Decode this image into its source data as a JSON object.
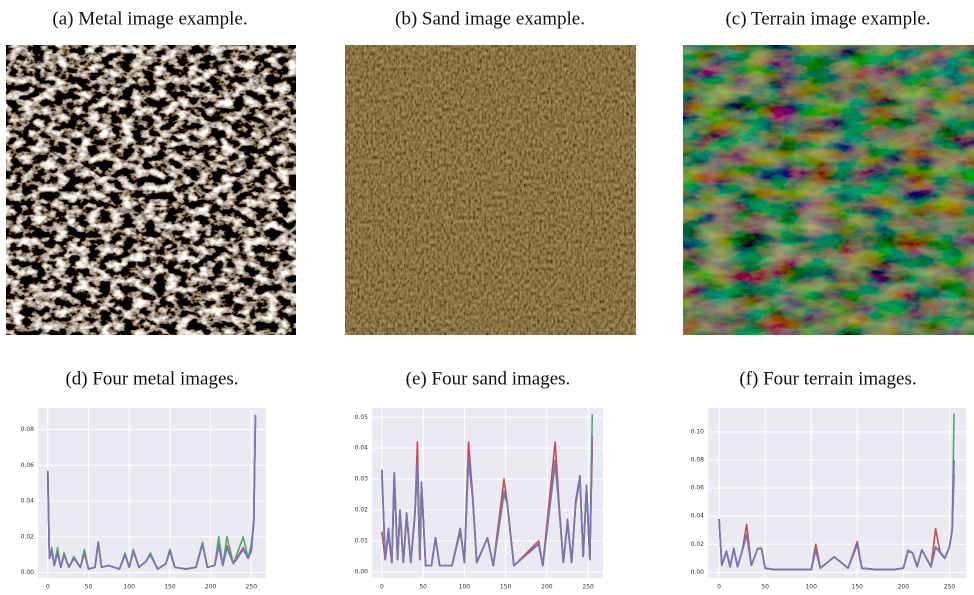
{
  "images": [
    {
      "caption": "(a) Metal image example."
    },
    {
      "caption": "(b) Sand image example."
    },
    {
      "caption": "(c) Terrain image example."
    }
  ],
  "chart_data": [
    {
      "type": "line",
      "title": "(d) Four metal images.",
      "grid": true,
      "xlim": [
        -12,
        268
      ],
      "xticks": [
        0,
        50,
        100,
        150,
        200,
        250
      ],
      "ylim": [
        -0.003,
        0.092
      ],
      "yticks": [
        {
          "value": 0,
          "label": "0.00"
        },
        {
          "value": 0.02,
          "label": "0.02"
        },
        {
          "value": 0.04,
          "label": "0.04"
        },
        {
          "value": 0.06,
          "label": "0.06"
        },
        {
          "value": 0.08,
          "label": "0.08"
        }
      ],
      "x": [
        0,
        2,
        5,
        8,
        12,
        16,
        20,
        26,
        32,
        40,
        45,
        50,
        58,
        62,
        66,
        75,
        88,
        95,
        100,
        105,
        112,
        120,
        126,
        135,
        145,
        150,
        156,
        170,
        182,
        190,
        196,
        205,
        210,
        215,
        220,
        228,
        240,
        246,
        250,
        253,
        255
      ],
      "series": [
        {
          "color": "#4c72b0",
          "values": [
            0.057,
            0.008,
            0.012,
            0.004,
            0.011,
            0.003,
            0.01,
            0.003,
            0.008,
            0.003,
            0.011,
            0.002,
            0.003,
            0.017,
            0.003,
            0.004,
            0.002,
            0.01,
            0.003,
            0.012,
            0.003,
            0.006,
            0.01,
            0.002,
            0.005,
            0.012,
            0.003,
            0.002,
            0.003,
            0.016,
            0.003,
            0.004,
            0.015,
            0.004,
            0.014,
            0.005,
            0.013,
            0.008,
            0.012,
            0.03,
            0.088
          ]
        },
        {
          "color": "#c44e52",
          "values": [
            0.056,
            0.008,
            0.012,
            0.004,
            0.012,
            0.003,
            0.01,
            0.003,
            0.008,
            0.003,
            0.011,
            0.002,
            0.003,
            0.017,
            0.003,
            0.004,
            0.002,
            0.01,
            0.003,
            0.012,
            0.003,
            0.006,
            0.01,
            0.002,
            0.005,
            0.013,
            0.003,
            0.002,
            0.003,
            0.016,
            0.003,
            0.004,
            0.016,
            0.004,
            0.015,
            0.005,
            0.014,
            0.008,
            0.013,
            0.028,
            0.086
          ]
        },
        {
          "color": "#55a868",
          "values": [
            0.055,
            0.009,
            0.014,
            0.004,
            0.014,
            0.003,
            0.011,
            0.003,
            0.009,
            0.003,
            0.013,
            0.002,
            0.003,
            0.017,
            0.003,
            0.004,
            0.002,
            0.011,
            0.003,
            0.013,
            0.003,
            0.006,
            0.011,
            0.002,
            0.005,
            0.013,
            0.003,
            0.002,
            0.003,
            0.017,
            0.003,
            0.004,
            0.02,
            0.004,
            0.02,
            0.005,
            0.02,
            0.008,
            0.016,
            0.03,
            0.085
          ]
        },
        {
          "color": "#8172b2",
          "values": [
            0.057,
            0.008,
            0.012,
            0.004,
            0.011,
            0.003,
            0.01,
            0.003,
            0.008,
            0.003,
            0.011,
            0.002,
            0.003,
            0.017,
            0.003,
            0.004,
            0.002,
            0.01,
            0.003,
            0.012,
            0.003,
            0.006,
            0.01,
            0.002,
            0.005,
            0.012,
            0.003,
            0.002,
            0.003,
            0.016,
            0.003,
            0.004,
            0.015,
            0.004,
            0.014,
            0.005,
            0.013,
            0.008,
            0.012,
            0.03,
            0.088
          ]
        }
      ]
    },
    {
      "type": "line",
      "title": "(e) Four sand images.",
      "grid": true,
      "xlim": [
        -12,
        268
      ],
      "xticks": [
        0,
        50,
        100,
        150,
        200,
        250
      ],
      "ylim": [
        -0.002,
        0.053
      ],
      "yticks": [
        {
          "value": 0,
          "label": "0.00"
        },
        {
          "value": 0.01,
          "label": "0.01"
        },
        {
          "value": 0.02,
          "label": "0.02"
        },
        {
          "value": 0.03,
          "label": "0.03"
        },
        {
          "value": 0.04,
          "label": "0.04"
        },
        {
          "value": 0.05,
          "label": "0.05"
        }
      ],
      "x": [
        0,
        4,
        8,
        12,
        15,
        19,
        22,
        26,
        30,
        35,
        40,
        43,
        46,
        48,
        53,
        60,
        65,
        70,
        85,
        95,
        100,
        105,
        110,
        115,
        128,
        135,
        148,
        152,
        160,
        190,
        195,
        210,
        215,
        220,
        225,
        230,
        235,
        240,
        244,
        248,
        252,
        255
      ],
      "series": [
        {
          "color": "#4c72b0",
          "values": [
            0.033,
            0.004,
            0.014,
            0.003,
            0.032,
            0.004,
            0.02,
            0.003,
            0.019,
            0.003,
            0.019,
            0.035,
            0.004,
            0.029,
            0.002,
            0.002,
            0.011,
            0.002,
            0.002,
            0.014,
            0.003,
            0.037,
            0.024,
            0.003,
            0.011,
            0.002,
            0.026,
            0.022,
            0.002,
            0.009,
            0.002,
            0.036,
            0.02,
            0.003,
            0.016,
            0.003,
            0.023,
            0.031,
            0.005,
            0.028,
            0.004,
            0.044
          ]
        },
        {
          "color": "#c44e52",
          "values": [
            0.013,
            0.004,
            0.012,
            0.003,
            0.03,
            0.004,
            0.019,
            0.003,
            0.018,
            0.003,
            0.018,
            0.042,
            0.004,
            0.028,
            0.002,
            0.002,
            0.011,
            0.002,
            0.002,
            0.013,
            0.003,
            0.042,
            0.025,
            0.003,
            0.011,
            0.002,
            0.03,
            0.022,
            0.002,
            0.01,
            0.002,
            0.042,
            0.021,
            0.003,
            0.017,
            0.003,
            0.022,
            0.03,
            0.005,
            0.027,
            0.004,
            0.04
          ]
        },
        {
          "color": "#55a868",
          "values": [
            0.031,
            0.004,
            0.014,
            0.003,
            0.032,
            0.004,
            0.02,
            0.003,
            0.019,
            0.003,
            0.019,
            0.034,
            0.004,
            0.029,
            0.002,
            0.002,
            0.011,
            0.002,
            0.002,
            0.014,
            0.003,
            0.036,
            0.024,
            0.003,
            0.011,
            0.002,
            0.025,
            0.022,
            0.002,
            0.009,
            0.002,
            0.035,
            0.02,
            0.003,
            0.016,
            0.003,
            0.023,
            0.031,
            0.005,
            0.028,
            0.004,
            0.051
          ]
        },
        {
          "color": "#8172b2",
          "values": [
            0.033,
            0.004,
            0.014,
            0.003,
            0.032,
            0.004,
            0.02,
            0.003,
            0.019,
            0.003,
            0.019,
            0.035,
            0.004,
            0.029,
            0.002,
            0.002,
            0.011,
            0.002,
            0.002,
            0.014,
            0.003,
            0.037,
            0.024,
            0.003,
            0.011,
            0.002,
            0.026,
            0.022,
            0.002,
            0.009,
            0.002,
            0.036,
            0.02,
            0.003,
            0.016,
            0.003,
            0.023,
            0.031,
            0.005,
            0.028,
            0.004,
            0.044
          ]
        }
      ]
    },
    {
      "type": "line",
      "title": "(f) Four terrain images.",
      "grid": true,
      "xlim": [
        -12,
        268
      ],
      "xticks": [
        0,
        50,
        100,
        150,
        200,
        250
      ],
      "ylim": [
        -0.004,
        0.117
      ],
      "yticks": [
        {
          "value": 0,
          "label": "0.00"
        },
        {
          "value": 0.02,
          "label": "0.02"
        },
        {
          "value": 0.04,
          "label": "0.04"
        },
        {
          "value": 0.06,
          "label": "0.06"
        },
        {
          "value": 0.08,
          "label": "0.08"
        },
        {
          "value": 0.1,
          "label": "0.10"
        }
      ],
      "x": [
        0,
        3,
        8,
        12,
        16,
        20,
        25,
        30,
        35,
        42,
        46,
        50,
        60,
        80,
        100,
        105,
        110,
        125,
        140,
        150,
        155,
        170,
        190,
        200,
        205,
        210,
        215,
        220,
        230,
        235,
        240,
        245,
        250,
        253,
        255
      ],
      "series": [
        {
          "color": "#4c72b0",
          "values": [
            0.038,
            0.005,
            0.015,
            0.004,
            0.017,
            0.004,
            0.015,
            0.027,
            0.005,
            0.017,
            0.017,
            0.003,
            0.002,
            0.002,
            0.002,
            0.016,
            0.003,
            0.011,
            0.003,
            0.02,
            0.003,
            0.002,
            0.002,
            0.003,
            0.015,
            0.014,
            0.004,
            0.016,
            0.004,
            0.018,
            0.014,
            0.01,
            0.018,
            0.03,
            0.08
          ]
        },
        {
          "color": "#c44e52",
          "values": [
            0.038,
            0.005,
            0.015,
            0.004,
            0.017,
            0.004,
            0.015,
            0.034,
            0.005,
            0.017,
            0.017,
            0.003,
            0.002,
            0.002,
            0.002,
            0.02,
            0.003,
            0.011,
            0.003,
            0.022,
            0.003,
            0.002,
            0.002,
            0.003,
            0.015,
            0.014,
            0.004,
            0.016,
            0.004,
            0.031,
            0.014,
            0.01,
            0.018,
            0.03,
            0.07
          ]
        },
        {
          "color": "#55a868",
          "values": [
            0.038,
            0.005,
            0.015,
            0.004,
            0.017,
            0.004,
            0.015,
            0.027,
            0.005,
            0.017,
            0.017,
            0.003,
            0.002,
            0.002,
            0.002,
            0.016,
            0.003,
            0.011,
            0.003,
            0.02,
            0.003,
            0.002,
            0.002,
            0.003,
            0.016,
            0.014,
            0.004,
            0.016,
            0.004,
            0.018,
            0.015,
            0.01,
            0.018,
            0.03,
            0.113
          ]
        },
        {
          "color": "#8172b2",
          "values": [
            0.038,
            0.005,
            0.015,
            0.004,
            0.017,
            0.004,
            0.015,
            0.027,
            0.005,
            0.017,
            0.017,
            0.003,
            0.002,
            0.002,
            0.002,
            0.016,
            0.003,
            0.011,
            0.003,
            0.02,
            0.003,
            0.002,
            0.002,
            0.003,
            0.015,
            0.014,
            0.004,
            0.016,
            0.004,
            0.018,
            0.014,
            0.01,
            0.018,
            0.03,
            0.08
          ]
        }
      ]
    }
  ]
}
